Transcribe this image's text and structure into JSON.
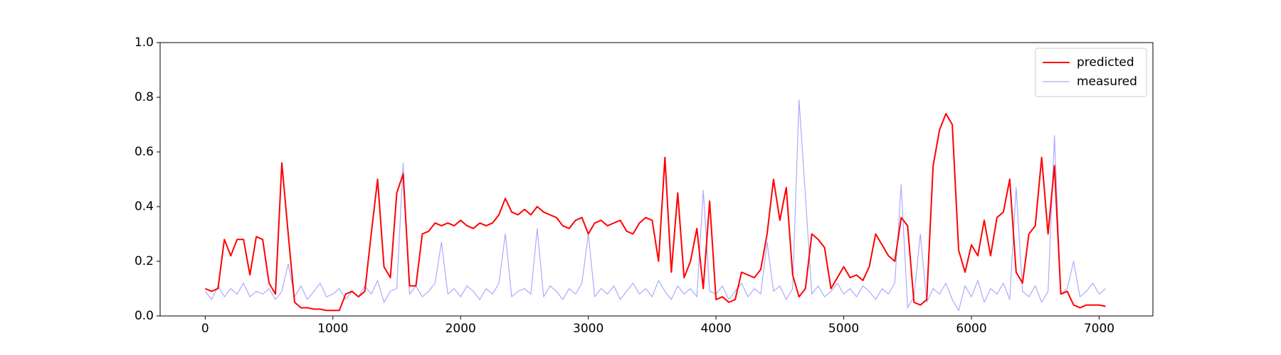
{
  "chart_data": {
    "type": "line",
    "x": [
      0,
      50,
      100,
      150,
      200,
      250,
      300,
      350,
      400,
      450,
      500,
      550,
      600,
      650,
      700,
      750,
      800,
      850,
      900,
      950,
      1000,
      1050,
      1100,
      1150,
      1200,
      1250,
      1300,
      1350,
      1400,
      1450,
      1500,
      1550,
      1600,
      1650,
      1700,
      1750,
      1800,
      1850,
      1900,
      1950,
      2000,
      2050,
      2100,
      2150,
      2200,
      2250,
      2300,
      2350,
      2400,
      2450,
      2500,
      2550,
      2600,
      2650,
      2700,
      2750,
      2800,
      2850,
      2900,
      2950,
      3000,
      3050,
      3100,
      3150,
      3200,
      3250,
      3300,
      3350,
      3400,
      3450,
      3500,
      3550,
      3600,
      3650,
      3700,
      3750,
      3800,
      3850,
      3900,
      3950,
      4000,
      4050,
      4100,
      4150,
      4200,
      4250,
      4300,
      4350,
      4400,
      4450,
      4500,
      4550,
      4600,
      4650,
      4700,
      4750,
      4800,
      4850,
      4900,
      4950,
      5000,
      5050,
      5100,
      5150,
      5200,
      5250,
      5300,
      5350,
      5400,
      5450,
      5500,
      5550,
      5600,
      5650,
      5700,
      5750,
      5800,
      5850,
      5900,
      5950,
      6000,
      6050,
      6100,
      6150,
      6200,
      6250,
      6300,
      6350,
      6400,
      6450,
      6500,
      6550,
      6600,
      6650,
      6700,
      6750,
      6800,
      6850,
      6900,
      6950,
      7000,
      7050
    ],
    "series": [
      {
        "name": "predicted",
        "color": "#ff0000",
        "values": [
          0.1,
          0.09,
          0.1,
          0.28,
          0.22,
          0.28,
          0.28,
          0.15,
          0.29,
          0.28,
          0.12,
          0.08,
          0.56,
          0.3,
          0.05,
          0.03,
          0.03,
          0.025,
          0.025,
          0.02,
          0.02,
          0.02,
          0.08,
          0.09,
          0.07,
          0.09,
          0.3,
          0.5,
          0.18,
          0.14,
          0.45,
          0.52,
          0.11,
          0.11,
          0.3,
          0.31,
          0.34,
          0.33,
          0.34,
          0.33,
          0.35,
          0.33,
          0.32,
          0.34,
          0.33,
          0.34,
          0.37,
          0.43,
          0.38,
          0.37,
          0.39,
          0.37,
          0.4,
          0.38,
          0.37,
          0.36,
          0.33,
          0.32,
          0.35,
          0.36,
          0.3,
          0.34,
          0.35,
          0.33,
          0.34,
          0.35,
          0.31,
          0.3,
          0.34,
          0.36,
          0.35,
          0.2,
          0.58,
          0.16,
          0.45,
          0.14,
          0.2,
          0.32,
          0.1,
          0.42,
          0.06,
          0.07,
          0.05,
          0.06,
          0.16,
          0.15,
          0.14,
          0.17,
          0.3,
          0.5,
          0.35,
          0.47,
          0.15,
          0.07,
          0.1,
          0.3,
          0.28,
          0.25,
          0.1,
          0.14,
          0.18,
          0.14,
          0.15,
          0.13,
          0.18,
          0.3,
          0.26,
          0.22,
          0.2,
          0.36,
          0.33,
          0.05,
          0.04,
          0.06,
          0.55,
          0.68,
          0.74,
          0.7,
          0.24,
          0.16,
          0.26,
          0.22,
          0.35,
          0.22,
          0.36,
          0.38,
          0.5,
          0.16,
          0.12,
          0.3,
          0.33,
          0.58,
          0.3,
          0.55,
          0.08,
          0.09,
          0.04,
          0.03,
          0.04,
          0.04,
          0.04,
          0.035
        ]
      },
      {
        "name": "measured",
        "color": "#aaaaff",
        "values": [
          0.09,
          0.06,
          0.11,
          0.07,
          0.1,
          0.08,
          0.12,
          0.07,
          0.09,
          0.08,
          0.1,
          0.06,
          0.09,
          0.19,
          0.07,
          0.11,
          0.06,
          0.09,
          0.12,
          0.07,
          0.08,
          0.1,
          0.06,
          0.09,
          0.07,
          0.11,
          0.08,
          0.13,
          0.05,
          0.09,
          0.1,
          0.56,
          0.08,
          0.11,
          0.07,
          0.09,
          0.12,
          0.27,
          0.08,
          0.1,
          0.07,
          0.11,
          0.09,
          0.06,
          0.1,
          0.08,
          0.12,
          0.3,
          0.07,
          0.09,
          0.1,
          0.08,
          0.32,
          0.07,
          0.11,
          0.09,
          0.06,
          0.1,
          0.08,
          0.12,
          0.3,
          0.07,
          0.1,
          0.08,
          0.11,
          0.06,
          0.09,
          0.12,
          0.08,
          0.1,
          0.07,
          0.13,
          0.09,
          0.06,
          0.11,
          0.08,
          0.1,
          0.07,
          0.46,
          0.09,
          0.08,
          0.11,
          0.06,
          0.09,
          0.12,
          0.07,
          0.1,
          0.08,
          0.27,
          0.09,
          0.11,
          0.06,
          0.1,
          0.79,
          0.44,
          0.08,
          0.11,
          0.07,
          0.09,
          0.12,
          0.08,
          0.1,
          0.07,
          0.11,
          0.09,
          0.06,
          0.1,
          0.08,
          0.12,
          0.48,
          0.03,
          0.07,
          0.3,
          0.05,
          0.1,
          0.08,
          0.12,
          0.06,
          0.02,
          0.11,
          0.07,
          0.13,
          0.05,
          0.1,
          0.08,
          0.12,
          0.06,
          0.47,
          0.09,
          0.07,
          0.11,
          0.05,
          0.09,
          0.66,
          0.08,
          0.1,
          0.2,
          0.07,
          0.09,
          0.12,
          0.08,
          0.1
        ]
      }
    ],
    "xlim": [
      -353,
      7421
    ],
    "xticks": [
      0,
      1000,
      2000,
      3000,
      4000,
      5000,
      6000,
      7000
    ],
    "ylim": [
      0,
      1
    ],
    "yticks": [
      {
        "value": 0,
        "label": "0.0"
      },
      0.2,
      0.4,
      0.6,
      0.8,
      {
        "value": 1,
        "label": "1.0"
      }
    ],
    "legend": "upper right"
  }
}
